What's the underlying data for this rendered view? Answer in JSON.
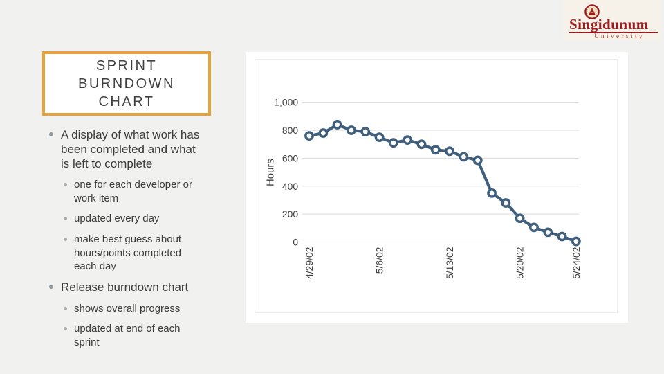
{
  "slide": {
    "title": [
      "SPRINT",
      "BURNDOWN",
      "CHART"
    ],
    "bullets": [
      {
        "text": [
          "A display of what work has",
          "been completed and what",
          "is left to complete"
        ],
        "subs": [
          [
            "one for each developer or",
            "work item"
          ],
          "updated every day",
          [
            "make best guess about",
            "hours/points completed",
            "each day"
          ]
        ]
      },
      {
        "text": "Release burndown chart",
        "subs": [
          "shows overall progress",
          [
            "updated at end of each",
            "sprint"
          ]
        ]
      }
    ]
  },
  "logo": {
    "name": "Singidunum",
    "subtitle": "University",
    "crest_icon": "university-crest-icon"
  },
  "colors": {
    "background": "#f1f1f0",
    "accent_orange": "#e8a23b",
    "text": "#3f3f3f",
    "line": "#3f5f7c",
    "grid": "#d9d9d9",
    "logo_red": "#9c1b1e",
    "logo_bg": "#f6f1e9"
  },
  "chart_data": {
    "type": "line",
    "title": "",
    "xlabel": "",
    "ylabel": "Hours",
    "x": [
      "4/29/02",
      "4/30/02",
      "5/1/02",
      "5/2/02",
      "5/3/02",
      "5/6/02",
      "5/7/02",
      "5/8/02",
      "5/9/02",
      "5/10/02",
      "5/13/02",
      "5/14/02",
      "5/15/02",
      "5/16/02",
      "5/17/02",
      "5/20/02",
      "5/21/02",
      "5/22/02",
      "5/23/02",
      "5/24/02"
    ],
    "values": [
      760,
      780,
      840,
      800,
      790,
      750,
      710,
      730,
      700,
      660,
      650,
      610,
      585,
      350,
      280,
      170,
      105,
      70,
      40,
      5
    ],
    "visible_x_ticks": [
      "4/29/02",
      "5/6/02",
      "5/13/02",
      "5/20/02",
      "5/24/02"
    ],
    "y_ticks": [
      0,
      200,
      400,
      600,
      800,
      1000
    ],
    "y_tick_labels": [
      "0",
      "200",
      "400",
      "600",
      "800",
      "1,000"
    ],
    "ylim": [
      0,
      1000
    ],
    "grid": "horizontal",
    "legend": "none",
    "marker": "open-circle"
  }
}
